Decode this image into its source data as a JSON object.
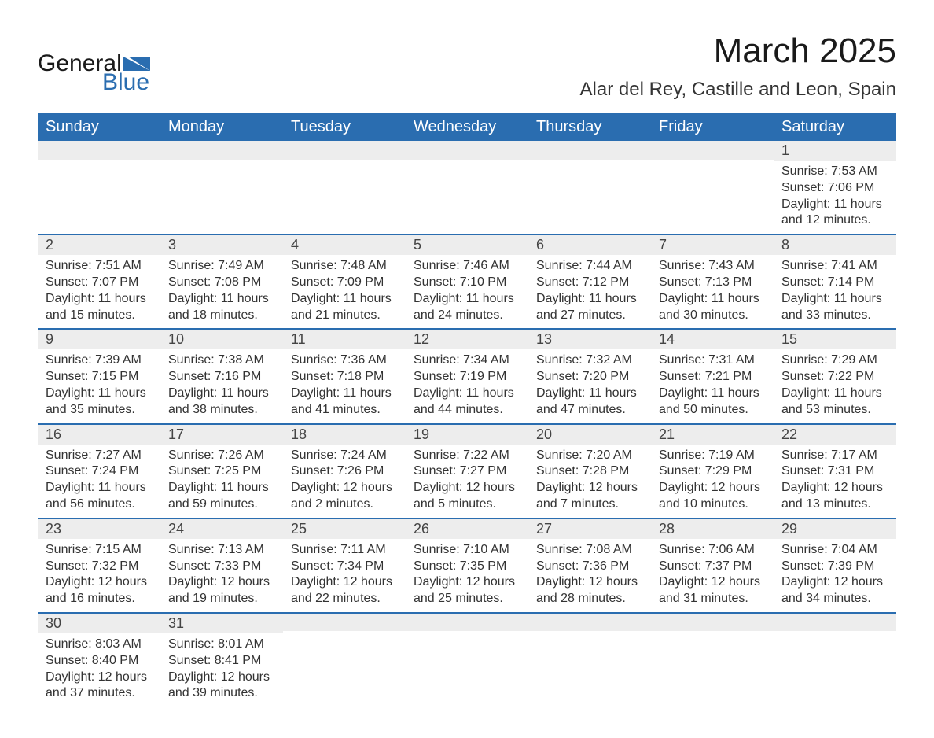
{
  "logo": {
    "word1": "General",
    "word2": "Blue",
    "icon_color": "#2a6db0"
  },
  "title": "March 2025",
  "location": "Alar del Rey, Castille and Leon, Spain",
  "colors": {
    "header_bg": "#2a6db0",
    "header_text": "#ffffff",
    "strip_bg": "#ededed",
    "row_border": "#2a6db0",
    "body_text": "#333333"
  },
  "typography": {
    "title_fontsize": 44,
    "location_fontsize": 24,
    "header_fontsize": 20,
    "daynum_fontsize": 18,
    "body_fontsize": 16
  },
  "calendar": {
    "columns": [
      "Sunday",
      "Monday",
      "Tuesday",
      "Wednesday",
      "Thursday",
      "Friday",
      "Saturday"
    ],
    "weeks": [
      [
        {
          "n": "",
          "sunrise": "",
          "sunset": "",
          "daylight": ""
        },
        {
          "n": "",
          "sunrise": "",
          "sunset": "",
          "daylight": ""
        },
        {
          "n": "",
          "sunrise": "",
          "sunset": "",
          "daylight": ""
        },
        {
          "n": "",
          "sunrise": "",
          "sunset": "",
          "daylight": ""
        },
        {
          "n": "",
          "sunrise": "",
          "sunset": "",
          "daylight": ""
        },
        {
          "n": "",
          "sunrise": "",
          "sunset": "",
          "daylight": ""
        },
        {
          "n": "1",
          "sunrise": "Sunrise: 7:53 AM",
          "sunset": "Sunset: 7:06 PM",
          "daylight": "Daylight: 11 hours and 12 minutes."
        }
      ],
      [
        {
          "n": "2",
          "sunrise": "Sunrise: 7:51 AM",
          "sunset": "Sunset: 7:07 PM",
          "daylight": "Daylight: 11 hours and 15 minutes."
        },
        {
          "n": "3",
          "sunrise": "Sunrise: 7:49 AM",
          "sunset": "Sunset: 7:08 PM",
          "daylight": "Daylight: 11 hours and 18 minutes."
        },
        {
          "n": "4",
          "sunrise": "Sunrise: 7:48 AM",
          "sunset": "Sunset: 7:09 PM",
          "daylight": "Daylight: 11 hours and 21 minutes."
        },
        {
          "n": "5",
          "sunrise": "Sunrise: 7:46 AM",
          "sunset": "Sunset: 7:10 PM",
          "daylight": "Daylight: 11 hours and 24 minutes."
        },
        {
          "n": "6",
          "sunrise": "Sunrise: 7:44 AM",
          "sunset": "Sunset: 7:12 PM",
          "daylight": "Daylight: 11 hours and 27 minutes."
        },
        {
          "n": "7",
          "sunrise": "Sunrise: 7:43 AM",
          "sunset": "Sunset: 7:13 PM",
          "daylight": "Daylight: 11 hours and 30 minutes."
        },
        {
          "n": "8",
          "sunrise": "Sunrise: 7:41 AM",
          "sunset": "Sunset: 7:14 PM",
          "daylight": "Daylight: 11 hours and 33 minutes."
        }
      ],
      [
        {
          "n": "9",
          "sunrise": "Sunrise: 7:39 AM",
          "sunset": "Sunset: 7:15 PM",
          "daylight": "Daylight: 11 hours and 35 minutes."
        },
        {
          "n": "10",
          "sunrise": "Sunrise: 7:38 AM",
          "sunset": "Sunset: 7:16 PM",
          "daylight": "Daylight: 11 hours and 38 minutes."
        },
        {
          "n": "11",
          "sunrise": "Sunrise: 7:36 AM",
          "sunset": "Sunset: 7:18 PM",
          "daylight": "Daylight: 11 hours and 41 minutes."
        },
        {
          "n": "12",
          "sunrise": "Sunrise: 7:34 AM",
          "sunset": "Sunset: 7:19 PM",
          "daylight": "Daylight: 11 hours and 44 minutes."
        },
        {
          "n": "13",
          "sunrise": "Sunrise: 7:32 AM",
          "sunset": "Sunset: 7:20 PM",
          "daylight": "Daylight: 11 hours and 47 minutes."
        },
        {
          "n": "14",
          "sunrise": "Sunrise: 7:31 AM",
          "sunset": "Sunset: 7:21 PM",
          "daylight": "Daylight: 11 hours and 50 minutes."
        },
        {
          "n": "15",
          "sunrise": "Sunrise: 7:29 AM",
          "sunset": "Sunset: 7:22 PM",
          "daylight": "Daylight: 11 hours and 53 minutes."
        }
      ],
      [
        {
          "n": "16",
          "sunrise": "Sunrise: 7:27 AM",
          "sunset": "Sunset: 7:24 PM",
          "daylight": "Daylight: 11 hours and 56 minutes."
        },
        {
          "n": "17",
          "sunrise": "Sunrise: 7:26 AM",
          "sunset": "Sunset: 7:25 PM",
          "daylight": "Daylight: 11 hours and 59 minutes."
        },
        {
          "n": "18",
          "sunrise": "Sunrise: 7:24 AM",
          "sunset": "Sunset: 7:26 PM",
          "daylight": "Daylight: 12 hours and 2 minutes."
        },
        {
          "n": "19",
          "sunrise": "Sunrise: 7:22 AM",
          "sunset": "Sunset: 7:27 PM",
          "daylight": "Daylight: 12 hours and 5 minutes."
        },
        {
          "n": "20",
          "sunrise": "Sunrise: 7:20 AM",
          "sunset": "Sunset: 7:28 PM",
          "daylight": "Daylight: 12 hours and 7 minutes."
        },
        {
          "n": "21",
          "sunrise": "Sunrise: 7:19 AM",
          "sunset": "Sunset: 7:29 PM",
          "daylight": "Daylight: 12 hours and 10 minutes."
        },
        {
          "n": "22",
          "sunrise": "Sunrise: 7:17 AM",
          "sunset": "Sunset: 7:31 PM",
          "daylight": "Daylight: 12 hours and 13 minutes."
        }
      ],
      [
        {
          "n": "23",
          "sunrise": "Sunrise: 7:15 AM",
          "sunset": "Sunset: 7:32 PM",
          "daylight": "Daylight: 12 hours and 16 minutes."
        },
        {
          "n": "24",
          "sunrise": "Sunrise: 7:13 AM",
          "sunset": "Sunset: 7:33 PM",
          "daylight": "Daylight: 12 hours and 19 minutes."
        },
        {
          "n": "25",
          "sunrise": "Sunrise: 7:11 AM",
          "sunset": "Sunset: 7:34 PM",
          "daylight": "Daylight: 12 hours and 22 minutes."
        },
        {
          "n": "26",
          "sunrise": "Sunrise: 7:10 AM",
          "sunset": "Sunset: 7:35 PM",
          "daylight": "Daylight: 12 hours and 25 minutes."
        },
        {
          "n": "27",
          "sunrise": "Sunrise: 7:08 AM",
          "sunset": "Sunset: 7:36 PM",
          "daylight": "Daylight: 12 hours and 28 minutes."
        },
        {
          "n": "28",
          "sunrise": "Sunrise: 7:06 AM",
          "sunset": "Sunset: 7:37 PM",
          "daylight": "Daylight: 12 hours and 31 minutes."
        },
        {
          "n": "29",
          "sunrise": "Sunrise: 7:04 AM",
          "sunset": "Sunset: 7:39 PM",
          "daylight": "Daylight: 12 hours and 34 minutes."
        }
      ],
      [
        {
          "n": "30",
          "sunrise": "Sunrise: 8:03 AM",
          "sunset": "Sunset: 8:40 PM",
          "daylight": "Daylight: 12 hours and 37 minutes."
        },
        {
          "n": "31",
          "sunrise": "Sunrise: 8:01 AM",
          "sunset": "Sunset: 8:41 PM",
          "daylight": "Daylight: 12 hours and 39 minutes."
        },
        {
          "n": "",
          "sunrise": "",
          "sunset": "",
          "daylight": ""
        },
        {
          "n": "",
          "sunrise": "",
          "sunset": "",
          "daylight": ""
        },
        {
          "n": "",
          "sunrise": "",
          "sunset": "",
          "daylight": ""
        },
        {
          "n": "",
          "sunrise": "",
          "sunset": "",
          "daylight": ""
        },
        {
          "n": "",
          "sunrise": "",
          "sunset": "",
          "daylight": ""
        }
      ]
    ]
  }
}
